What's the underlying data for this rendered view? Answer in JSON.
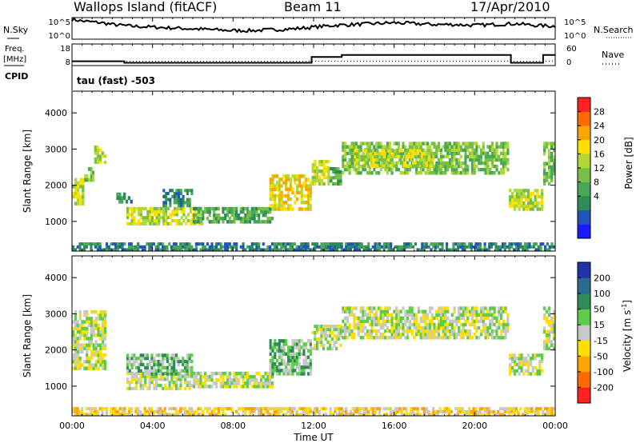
{
  "header": {
    "station": "Wallops Island (fitACF)",
    "beam": "Beam 11",
    "date": "17/Apr/2010"
  },
  "chart_data": [
    {
      "type": "line",
      "name": "noise-panel",
      "left_label": "N.Sky",
      "right_label": "N.Search",
      "left_ticks": [
        "10^5",
        "10^0"
      ],
      "right_ticks": [
        "10^5",
        "10^0"
      ],
      "ylim_log10": [
        0,
        5
      ],
      "x_hours": [
        0.0,
        0.5,
        1.0,
        1.5,
        2.0,
        3.0,
        4.0,
        5.0,
        6.0,
        7.0,
        8.0,
        9.0,
        10.0,
        11.0,
        12.0,
        13.0,
        14.0,
        15.0,
        16.0,
        17.0,
        18.0,
        19.0,
        20.0,
        21.0,
        22.0,
        23.0,
        24.0
      ],
      "n_sky_log10": [
        4.6,
        4.2,
        4.0,
        3.8,
        3.4,
        3.0,
        2.8,
        2.6,
        2.4,
        2.2,
        2.0,
        2.0,
        2.2,
        2.4,
        2.8,
        3.2,
        3.4,
        3.6,
        3.8,
        3.6,
        3.4,
        3.4,
        3.2,
        3.4,
        3.6,
        3.2,
        3.0
      ]
    },
    {
      "type": "line",
      "name": "frequency-panel",
      "left_label": "Freq.",
      "left_unit": "[MHz]",
      "right_label": "Nave",
      "left_ticks": [
        "18",
        "8"
      ],
      "right_ticks": [
        "60",
        "0"
      ],
      "freq_ylim": [
        8,
        18
      ],
      "freq_steps": [
        [
          0,
          10.0
        ],
        [
          2.6,
          10.0
        ],
        [
          2.6,
          9.3
        ],
        [
          11.9,
          9.3
        ],
        [
          11.9,
          12.0
        ],
        [
          13.4,
          12.0
        ],
        [
          13.4,
          12.9
        ],
        [
          21.8,
          12.9
        ],
        [
          21.8,
          9.3
        ],
        [
          23.4,
          9.3
        ],
        [
          23.4,
          12.9
        ],
        [
          24,
          12.9
        ]
      ],
      "nave_level": 12
    },
    {
      "type": "table",
      "name": "cpid-panel",
      "label": "CPID",
      "text": "tau (fast) -503"
    },
    {
      "type": "heatmap",
      "name": "power-panel",
      "ylabel": "Slant Range [km]",
      "yticks": [
        "4000",
        "3000",
        "2000",
        "1000"
      ],
      "ylim": [
        180,
        4600
      ],
      "xlim_hours": [
        0,
        24
      ],
      "colorbar_label": "Power [dB]",
      "colorbar_ticks": [
        "28",
        "24",
        "20",
        "16",
        "12",
        "8",
        "4"
      ],
      "colors": [
        "#1a1aff",
        "#2255bb",
        "#2e8b57",
        "#48a858",
        "#77c045",
        "#b0d836",
        "#ffdf00",
        "#ffa500",
        "#ff6a00",
        "#ff2020"
      ],
      "regions": [
        {
          "t0": 0.0,
          "t1": 0.6,
          "r0": 1450,
          "r1": 2200,
          "level": 5
        },
        {
          "t0": 0.6,
          "t1": 1.1,
          "r0": 2100,
          "r1": 2500,
          "level": 4
        },
        {
          "t0": 1.1,
          "t1": 1.7,
          "r0": 2600,
          "r1": 3100,
          "level": 5
        },
        {
          "t0": 2.2,
          "t1": 3.0,
          "r0": 1500,
          "r1": 1800,
          "level": 2
        },
        {
          "t0": 2.7,
          "t1": 6.5,
          "r0": 900,
          "r1": 1400,
          "level": 5
        },
        {
          "t0": 4.5,
          "t1": 6.0,
          "r0": 1400,
          "r1": 1900,
          "level": 2
        },
        {
          "t0": 6.0,
          "t1": 10.0,
          "r0": 950,
          "r1": 1400,
          "level": 3
        },
        {
          "t0": 9.8,
          "t1": 11.9,
          "r0": 1300,
          "r1": 2300,
          "level": 6
        },
        {
          "t0": 11.9,
          "t1": 12.8,
          "r0": 2000,
          "r1": 2700,
          "level": 5
        },
        {
          "t0": 12.8,
          "t1": 13.4,
          "r0": 2000,
          "r1": 2500,
          "level": 3
        },
        {
          "t0": 13.4,
          "t1": 21.7,
          "r0": 2300,
          "r1": 3200,
          "level": 4
        },
        {
          "t0": 14.0,
          "t1": 18.0,
          "r0": 2500,
          "r1": 3000,
          "level": 5
        },
        {
          "t0": 21.7,
          "t1": 23.4,
          "r0": 1300,
          "r1": 1900,
          "level": 5
        },
        {
          "t0": 23.4,
          "t1": 24.0,
          "r0": 2000,
          "r1": 3200,
          "level": 4
        },
        {
          "t0": 0.0,
          "t1": 24.0,
          "r0": 180,
          "r1": 420,
          "level": 2
        }
      ]
    },
    {
      "type": "heatmap",
      "name": "velocity-panel",
      "ylabel": "Slant Range [km]",
      "yticks": [
        "4000",
        "3000",
        "2000",
        "1000"
      ],
      "ylim": [
        180,
        4600
      ],
      "xlim_hours": [
        0,
        24
      ],
      "xticks": [
        "00:00",
        "04:00",
        "08:00",
        "12:00",
        "16:00",
        "20:00",
        "00:00"
      ],
      "xlabel": "Time UT",
      "colorbar_label": "Velocity",
      "colorbar_unit": "[m s",
      "colorbar_unit_exp": "-1",
      "colorbar_unit_close": "]",
      "colorbar_ticks": [
        "200",
        "100",
        "50",
        "15",
        "-15",
        "-50",
        "-100",
        "-200"
      ],
      "colors": [
        "#2233aa",
        "#2b6b8f",
        "#2e8b57",
        "#5fcc4a",
        "#c8c8c8",
        "#ffdf00",
        "#ffa500",
        "#ff6a00",
        "#ff2020"
      ],
      "regions": [
        {
          "t0": 0.0,
          "t1": 1.7,
          "r0": 1450,
          "r1": 3100,
          "level": 4
        },
        {
          "t0": 2.7,
          "t1": 6.0,
          "r0": 900,
          "r1": 1400,
          "level": 4
        },
        {
          "t0": 2.7,
          "t1": 6.0,
          "r0": 1300,
          "r1": 1900,
          "level": 3
        },
        {
          "t0": 6.0,
          "t1": 10.0,
          "r0": 950,
          "r1": 1400,
          "level": 4
        },
        {
          "t0": 9.8,
          "t1": 11.9,
          "r0": 1300,
          "r1": 2300,
          "level": 3
        },
        {
          "t0": 11.9,
          "t1": 13.4,
          "r0": 2000,
          "r1": 2700,
          "level": 4
        },
        {
          "t0": 13.4,
          "t1": 21.7,
          "r0": 2300,
          "r1": 3200,
          "level": 4
        },
        {
          "t0": 21.7,
          "t1": 23.4,
          "r0": 1300,
          "r1": 1900,
          "level": 4
        },
        {
          "t0": 23.4,
          "t1": 24.0,
          "r0": 2000,
          "r1": 3200,
          "level": 4
        },
        {
          "t0": 0.0,
          "t1": 24.0,
          "r0": 180,
          "r1": 420,
          "level": 5
        }
      ]
    }
  ]
}
